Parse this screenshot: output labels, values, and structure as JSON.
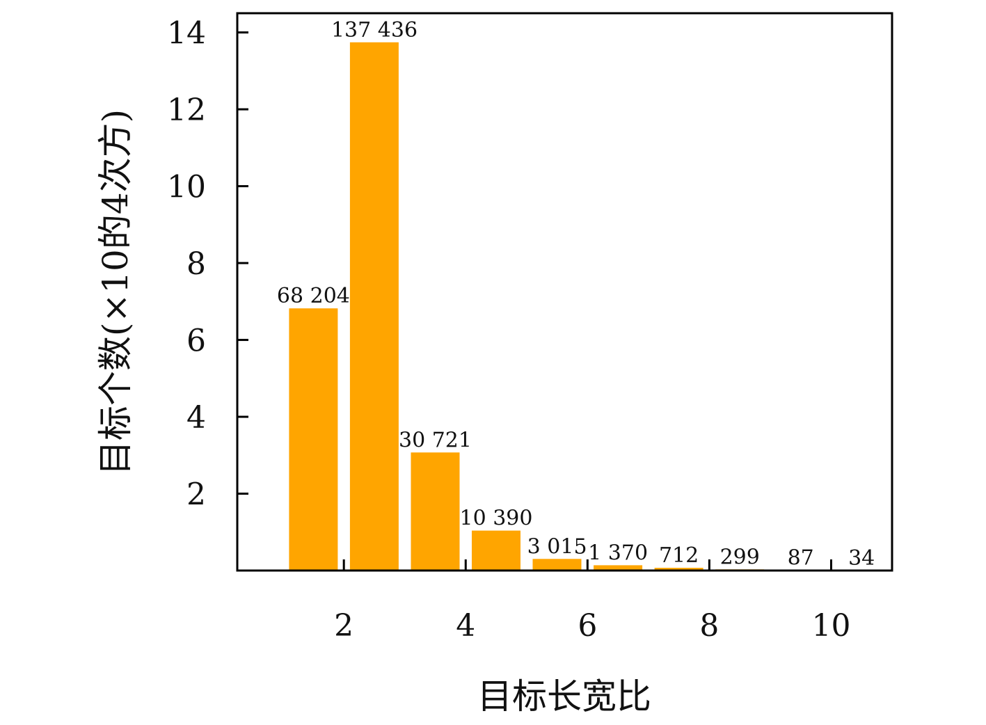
{
  "chart_data": {
    "type": "bar",
    "xlabel": "目标长宽比",
    "ylabel": "目标个数(×10的4次方)",
    "x": [
      1.5,
      2.5,
      3.5,
      4.5,
      5.5,
      6.5,
      7.5,
      8.5,
      9.5,
      10.5
    ],
    "values": [
      6.8204,
      13.7436,
      3.0721,
      1.039,
      0.3015,
      0.137,
      0.0712,
      0.0299,
      0.0087,
      0.0034
    ],
    "data_labels": [
      "68 204",
      "137 436",
      "30 721",
      "10 390",
      "3 015",
      "1 370",
      "712",
      "299",
      "87",
      "34"
    ],
    "xlim": [
      0.25,
      11.0
    ],
    "ylim": [
      0,
      14.5
    ],
    "xticks": [
      2,
      4,
      6,
      8,
      10
    ],
    "xtick_labels": [
      "2",
      "4",
      "6",
      "8",
      "10"
    ],
    "yticks": [
      2,
      4,
      6,
      8,
      10,
      12,
      14
    ],
    "ytick_labels": [
      "2",
      "4",
      "6",
      "8",
      "10",
      "12",
      "14"
    ],
    "bar_color": "#FFA500",
    "grid": false
  }
}
